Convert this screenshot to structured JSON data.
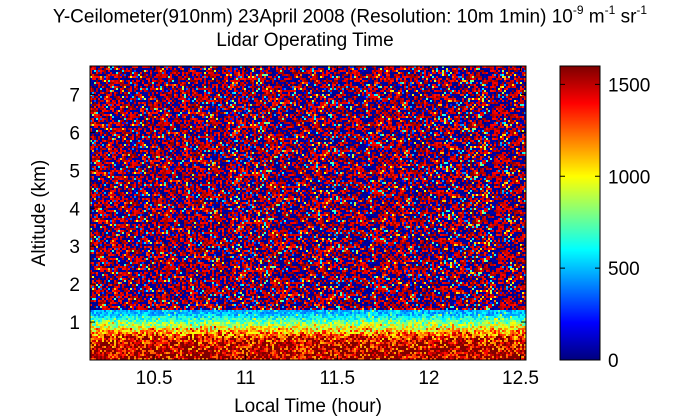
{
  "title": {
    "main_prefix": "Y-Ceilometer(910nm) 23April 2008 (Resolution: 10m 1min) 10",
    "main_exp1": "-9",
    "main_unit1": " m",
    "main_exp2": "-1",
    "main_unit2": " sr",
    "main_exp3": "-1",
    "subtitle": "Lidar Operating Time"
  },
  "chart_data": {
    "type": "heatmap",
    "title": "Y-Ceilometer(910nm) 23April 2008 (Resolution: 10m 1min) 10^-9 m^-1 sr^-1 — Lidar Operating Time",
    "xlabel": "Local Time (hour)",
    "ylabel": "Altitude (km)",
    "xlim": [
      10.15,
      12.53
    ],
    "ylim": [
      0,
      7.75
    ],
    "xticks": [
      10.5,
      11,
      11.5,
      12,
      12.5
    ],
    "xtick_labels": [
      "10.5",
      "11",
      "11.5",
      "12",
      "12.5"
    ],
    "yticks": [
      1,
      2,
      3,
      4,
      5,
      6,
      7
    ],
    "ytick_labels": [
      "1",
      "2",
      "3",
      "4",
      "5",
      "6",
      "7"
    ],
    "colorbar": {
      "colormap": "jet",
      "range": [
        0,
        1600
      ],
      "ticks": [
        0,
        500,
        1000,
        1500
      ],
      "tick_labels": [
        "0",
        "500",
        "1000",
        "1500"
      ]
    },
    "profile": [
      {
        "altitude_km": 0.25,
        "typical_value": 1500
      },
      {
        "altitude_km": 0.6,
        "typical_value": 1350
      },
      {
        "altitude_km": 0.9,
        "typical_value": 900
      },
      {
        "altitude_km": 1.2,
        "typical_value": 500
      },
      {
        "altitude_km": 1.6,
        "typical_value": 350
      },
      {
        "altitude_km": 2.5,
        "typical_value": 250
      },
      {
        "altitude_km": 4.0,
        "typical_value": 300
      },
      {
        "altitude_km": 7.0,
        "typical_value": 350
      }
    ]
  }
}
